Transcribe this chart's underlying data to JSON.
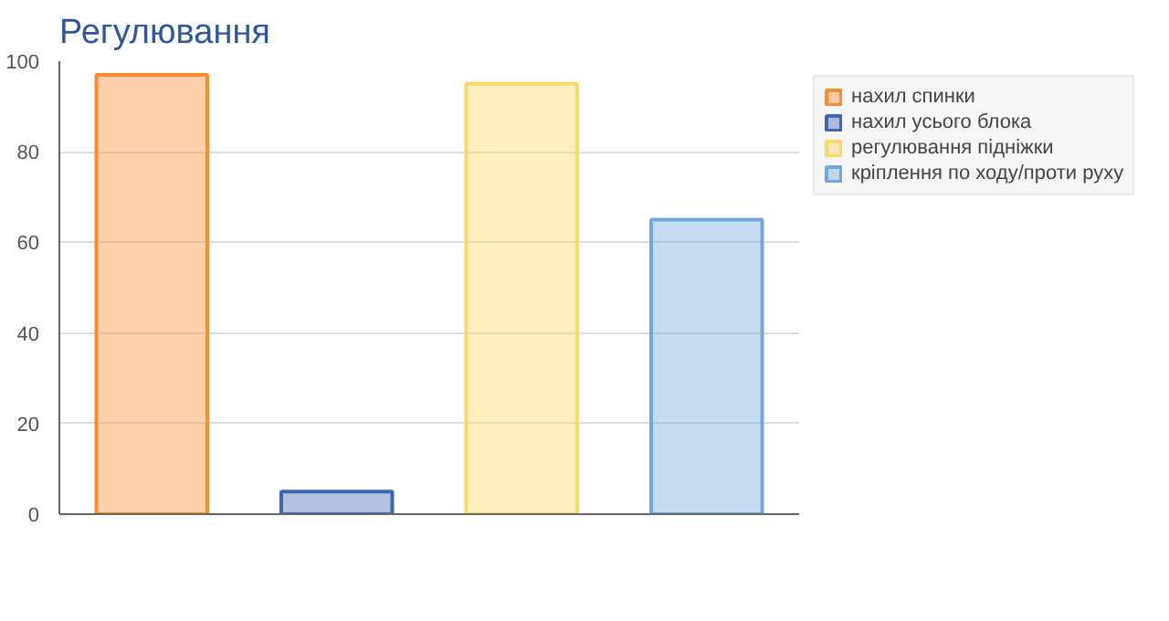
{
  "chart_data": {
    "type": "bar",
    "title": "Регулювання",
    "categories": [
      null,
      null,
      null,
      null
    ],
    "series": [
      {
        "name": "нахил спинки",
        "color": "#fd8d2c",
        "values": [
          97,
          null,
          null,
          null
        ]
      },
      {
        "name": "нахил усього блока",
        "color": "#3f66b0",
        "values": [
          null,
          5,
          null,
          null
        ]
      },
      {
        "name": "регулювання підніжки",
        "color": "#ffd966",
        "values": [
          null,
          null,
          95,
          null
        ]
      },
      {
        "name": "кріплення по ходу/проти руху",
        "color": "#6fa8dc",
        "values": [
          null,
          null,
          null,
          65
        ]
      }
    ],
    "ylim": [
      0,
      100
    ],
    "yticks": [
      0,
      20,
      40,
      60,
      80,
      100
    ],
    "grid": "y",
    "legend": "top right"
  }
}
